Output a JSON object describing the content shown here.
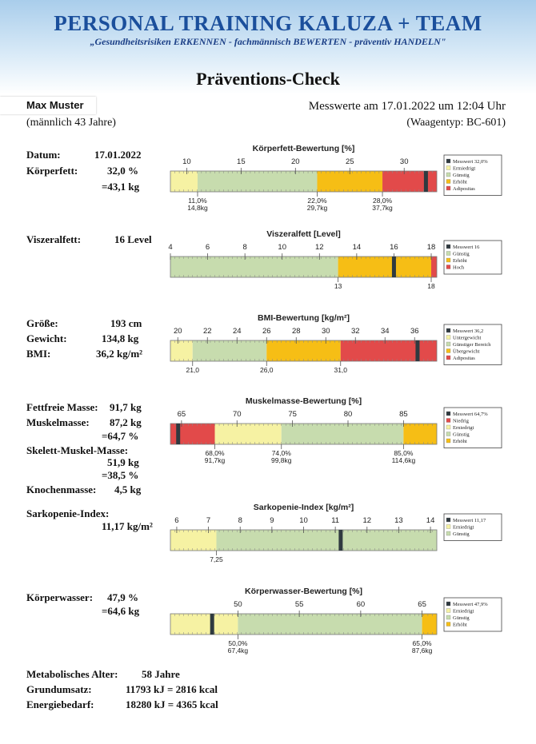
{
  "header": {
    "brand": "PERSONAL TRAINING KALUZA + TEAM",
    "slogan": "„Gesundheitsrisiken ERKENNEN - fachmännisch BEWERTEN - präventiv HANDELN\"",
    "doc_title": "Präventions-Check"
  },
  "patient": {
    "name": "Max Muster",
    "gender_age": "(männlich 43 Jahre)",
    "measure_date": "Messwerte am 17.01.2022 um 12:04 Uhr",
    "scale_type": "(Waagentyp: BC-601)"
  },
  "sections": {
    "datum_label": "Datum:",
    "datum_value": "17.01.2022",
    "kf_label": "Körperfett:",
    "kf_pct": "32,0 %",
    "kf_kg": "=43,1 kg",
    "vf_label": "Viszeralfett:",
    "vf_value": "16 Level",
    "groesse_label": "Größe:",
    "groesse_value": "193 cm",
    "gewicht_label": "Gewicht:",
    "gewicht_value": "134,8 kg",
    "bmi_label": "BMI:",
    "bmi_value": "36,2 kg/m²",
    "ffm_label": "Fettfreie Masse:",
    "ffm_value": "91,7 kg",
    "mm_label": "Muskelmasse:",
    "mm_kg": "87,2 kg",
    "mm_pct": "=64,7 %",
    "smm_label": "Skelett-Muskel-Masse:",
    "smm_kg": "51,9 kg",
    "smm_pct": "=38,5 %",
    "km_label": "Knochenmasse:",
    "km_value": "4,5 kg",
    "sarko_label": "Sarkopenie-Index:",
    "sarko_value": "11,17 kg/m²",
    "kw_label": "Körperwasser:",
    "kw_pct": "47,9 %",
    "kw_kg": "=64,6 kg",
    "ma_label": "Metabolisches Alter:",
    "ma_value": "58 Jahre",
    "gu_label": "Grundumsatz:",
    "gu_value": "11793 kJ = 2816 kcal",
    "eb_label": "Energiebedarf:",
    "eb_value": "18280 kJ = 4365 kcal"
  },
  "colors": {
    "red": "#e24a4a",
    "orange": "#f6be15",
    "green": "#c7dcae",
    "yellow": "#f6f2a3",
    "marker": "#2f3a40"
  },
  "chart_data": [
    {
      "type": "range-bar",
      "title": "Körperfett-Bewertung [%]",
      "xlim": [
        8.5,
        33
      ],
      "ticks": [
        10,
        15,
        20,
        25,
        30
      ],
      "zones": [
        {
          "from": 8.5,
          "to": 11,
          "color": "yellow"
        },
        {
          "from": 11,
          "to": 22,
          "color": "green"
        },
        {
          "from": 22,
          "to": 28,
          "color": "orange"
        },
        {
          "from": 28,
          "to": 33,
          "color": "red"
        }
      ],
      "value": 32.0,
      "boundaries": [
        {
          "x": 11,
          "labels": [
            "11,0%",
            "14,8kg"
          ]
        },
        {
          "x": 22,
          "labels": [
            "22,0%",
            "29,7kg"
          ]
        },
        {
          "x": 28,
          "labels": [
            "28,0%",
            "37,7kg"
          ]
        }
      ],
      "legend": [
        {
          "color": "marker",
          "text": "Messwert 32,0%"
        },
        {
          "color": "yellow",
          "text": "Ermiedrigt"
        },
        {
          "color": "green",
          "text": "Günstig"
        },
        {
          "color": "orange",
          "text": "Erhöht"
        },
        {
          "color": "red",
          "text": "Adipositas"
        }
      ]
    },
    {
      "type": "range-bar",
      "title": "Viszeralfett [Level]",
      "xlim": [
        4,
        18.3
      ],
      "ticks": [
        4,
        6,
        8,
        10,
        12,
        14,
        16,
        18
      ],
      "zones": [
        {
          "from": 4,
          "to": 13,
          "color": "green"
        },
        {
          "from": 13,
          "to": 18,
          "color": "orange"
        },
        {
          "from": 18,
          "to": 18.3,
          "color": "red"
        }
      ],
      "value": 16,
      "boundaries": [
        {
          "x": 13,
          "labels": [
            "13"
          ]
        },
        {
          "x": 18,
          "labels": [
            "18"
          ]
        }
      ],
      "legend": [
        {
          "color": "marker",
          "text": "Messwert 16"
        },
        {
          "color": "green",
          "text": "Günstig"
        },
        {
          "color": "orange",
          "text": "Erhöht"
        },
        {
          "color": "red",
          "text": "Hoch"
        }
      ]
    },
    {
      "type": "range-bar",
      "title": "BMI-Bewertung [kg/m²]",
      "xlim": [
        19.5,
        37.5
      ],
      "ticks": [
        20,
        22,
        24,
        26,
        28,
        30,
        32,
        34,
        36
      ],
      "zones": [
        {
          "from": 19.5,
          "to": 21,
          "color": "yellow"
        },
        {
          "from": 21,
          "to": 26,
          "color": "green"
        },
        {
          "from": 26,
          "to": 31,
          "color": "orange"
        },
        {
          "from": 31,
          "to": 37.5,
          "color": "red"
        }
      ],
      "value": 36.2,
      "boundaries": [
        {
          "x": 21,
          "labels": [
            "21,0"
          ]
        },
        {
          "x": 26,
          "labels": [
            "26,0"
          ]
        },
        {
          "x": 31,
          "labels": [
            "31,0"
          ]
        }
      ],
      "legend": [
        {
          "color": "marker",
          "text": "Messwert 36,2"
        },
        {
          "color": "yellow",
          "text": "Untergewicht"
        },
        {
          "color": "green",
          "text": "Günstiger Bereich"
        },
        {
          "color": "orange",
          "text": "Übergewicht"
        },
        {
          "color": "red",
          "text": "Adipositas"
        }
      ]
    },
    {
      "type": "range-bar",
      "title": "Muskelmasse-Bewertung [%]",
      "xlim": [
        64,
        88
      ],
      "ticks": [
        65,
        70,
        75,
        80,
        85
      ],
      "zones": [
        {
          "from": 64,
          "to": 68,
          "color": "red"
        },
        {
          "from": 68,
          "to": 74,
          "color": "yellow"
        },
        {
          "from": 74,
          "to": 85,
          "color": "green"
        },
        {
          "from": 85,
          "to": 88,
          "color": "orange"
        }
      ],
      "value": 64.7,
      "boundaries": [
        {
          "x": 68,
          "labels": [
            "68,0%",
            "91,7kg"
          ]
        },
        {
          "x": 74,
          "labels": [
            "74,0%",
            "99,8kg"
          ]
        },
        {
          "x": 85,
          "labels": [
            "85,0%",
            "114,6kg"
          ]
        }
      ],
      "legend": [
        {
          "color": "marker",
          "text": "Messwert 64,7%"
        },
        {
          "color": "red",
          "text": "Niedrig"
        },
        {
          "color": "yellow",
          "text": "Erniedrigt"
        },
        {
          "color": "green",
          "text": "Günstig"
        },
        {
          "color": "orange",
          "text": "Erhöht"
        }
      ]
    },
    {
      "type": "range-bar",
      "title": "Sarkopenie-Index [kg/m²]",
      "xlim": [
        5.8,
        14.2
      ],
      "ticks": [
        6,
        7,
        8,
        9,
        10,
        11,
        12,
        13,
        14
      ],
      "zones": [
        {
          "from": 5.8,
          "to": 7.25,
          "color": "yellow"
        },
        {
          "from": 7.25,
          "to": 14.2,
          "color": "green"
        }
      ],
      "value": 11.17,
      "boundaries": [
        {
          "x": 7.25,
          "labels": [
            "7,25"
          ]
        }
      ],
      "legend": [
        {
          "color": "marker",
          "text": "Messwert 11,17"
        },
        {
          "color": "yellow",
          "text": "Erniedrigt"
        },
        {
          "color": "green",
          "text": "Günstig"
        }
      ]
    },
    {
      "type": "range-bar",
      "title": "Körperwasser-Bewertung [%]",
      "xlim": [
        44.5,
        66.2
      ],
      "ticks": [
        50,
        55,
        60,
        65
      ],
      "zones": [
        {
          "from": 44.5,
          "to": 50,
          "color": "yellow"
        },
        {
          "from": 50,
          "to": 65,
          "color": "green"
        },
        {
          "from": 65,
          "to": 66.2,
          "color": "orange"
        }
      ],
      "value": 47.9,
      "boundaries": [
        {
          "x": 50,
          "labels": [
            "50,0%",
            "67,4kg"
          ]
        },
        {
          "x": 65,
          "labels": [
            "65,0%",
            "87,6kg"
          ]
        }
      ],
      "legend": [
        {
          "color": "marker",
          "text": "Messwert 47,9%"
        },
        {
          "color": "yellow",
          "text": "Erniedrigt"
        },
        {
          "color": "green",
          "text": "Günstig"
        },
        {
          "color": "orange",
          "text": "Erhöht"
        }
      ]
    }
  ]
}
